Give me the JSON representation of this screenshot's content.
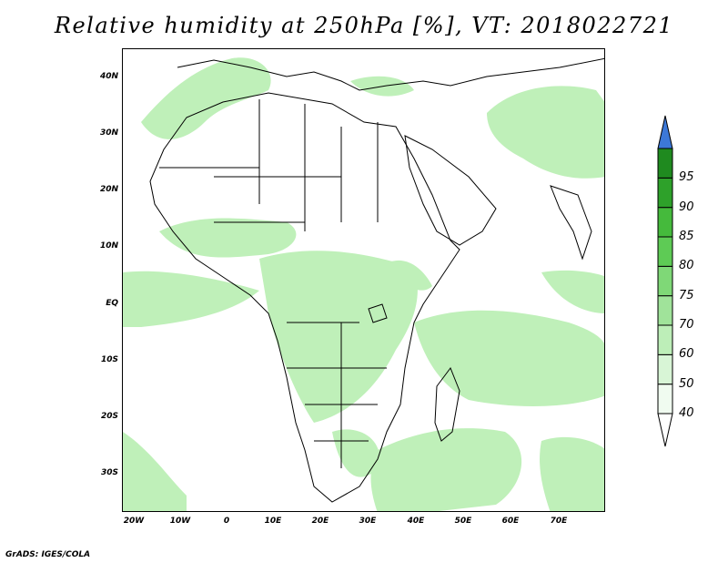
{
  "title": "Relative humidity at 250hPa [%], VT: 2018022721",
  "footer": "GrADS: IGES/COLA",
  "map": {
    "lon_range": [
      -25,
      80
    ],
    "lat_range": [
      -37,
      45
    ],
    "lat_ticks": [
      "40N",
      "30N",
      "20N",
      "10N",
      "EQ",
      "10S",
      "20S",
      "30S"
    ],
    "lon_ticks": [
      "20W",
      "10W",
      "0",
      "10E",
      "20E",
      "30E",
      "40E",
      "50E",
      "60E",
      "70E"
    ],
    "field": "relative-humidity-250hPa",
    "coastline_color": "#000000"
  },
  "colorbar": {
    "levels": [
      "40",
      "50",
      "60",
      "70",
      "75",
      "80",
      "85",
      "90",
      "95"
    ],
    "colors": [
      "#f0fbf0",
      "#d8f5d6",
      "#bdeeb8",
      "#a0e39a",
      "#7fd877",
      "#5ecb55",
      "#45ba3c",
      "#2ea12a",
      "#1f8a1f"
    ],
    "over_color": "#3c78d8",
    "under_color": "#ffffff"
  }
}
